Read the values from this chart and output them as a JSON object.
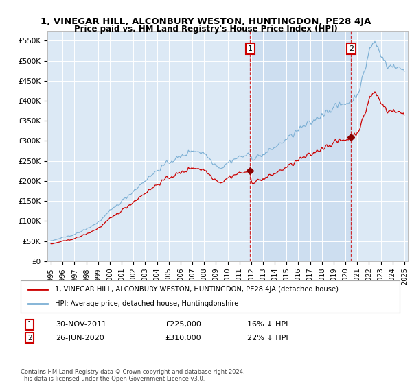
{
  "title": "1, VINEGAR HILL, ALCONBURY WESTON, HUNTINGDON, PE28 4JA",
  "subtitle": "Price paid vs. HM Land Registry's House Price Index (HPI)",
  "background_color": "#ffffff",
  "plot_bg_color": "#dce9f5",
  "grid_color": "#ffffff",
  "ylim": [
    0,
    575000
  ],
  "yticks": [
    0,
    50000,
    100000,
    150000,
    200000,
    250000,
    300000,
    350000,
    400000,
    450000,
    500000,
    550000
  ],
  "ytick_labels": [
    "£0",
    "£50K",
    "£100K",
    "£150K",
    "£200K",
    "£250K",
    "£300K",
    "£350K",
    "£400K",
    "£450K",
    "£500K",
    "£550K"
  ],
  "hpi_color": "#7bafd4",
  "price_color": "#cc0000",
  "marker_color": "#8b0000",
  "shade_color": "#ccddf0",
  "sale1_year": 2011.92,
  "sale1_price": 225000,
  "sale2_year": 2020.49,
  "sale2_price": 310000,
  "annotation1_label": "1",
  "annotation2_label": "2",
  "sale1_date": "30-NOV-2011",
  "sale1_price_str": "£225,000",
  "sale1_pct": "16% ↓ HPI",
  "sale2_date": "26-JUN-2020",
  "sale2_price_str": "£310,000",
  "sale2_pct": "22% ↓ HPI",
  "legend_house": "1, VINEGAR HILL, ALCONBURY WESTON, HUNTINGDON, PE28 4JA (detached house)",
  "legend_hpi": "HPI: Average price, detached house, Huntingdonshire",
  "footer": "Contains HM Land Registry data © Crown copyright and database right 2024.\nThis data is licensed under the Open Government Licence v3.0.",
  "xlim_left": 1994.7,
  "xlim_right": 2025.3
}
